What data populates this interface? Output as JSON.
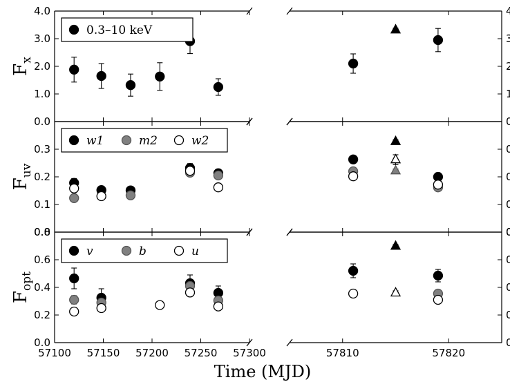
{
  "chart_data": {
    "type": "scatter",
    "xlabel": "Time (MJD)",
    "broken_x_axis": true,
    "x_segments": [
      {
        "xlim": [
          57100,
          57300
        ],
        "ticks": [
          "57100",
          "57150",
          "57200",
          "57250",
          "57300"
        ]
      },
      {
        "xlim": [
          57805,
          57825
        ],
        "ticks": [
          "57810",
          "57820"
        ]
      }
    ],
    "panels": [
      {
        "ylabel_main": "F",
        "ylabel_sub": "x",
        "ylim": [
          0,
          4
        ],
        "yticks": [
          "0.0",
          "1.0",
          "2.0",
          "3.0",
          "4.0"
        ],
        "legend": "top-left",
        "series": [
          {
            "name": "0.3–10 keV",
            "style": "black",
            "points": [
              {
                "x": 57120,
                "y": 1.88,
                "err": 0.45
              },
              {
                "x": 57148,
                "y": 1.65,
                "err": 0.45
              },
              {
                "x": 57178,
                "y": 1.32,
                "err": 0.4
              },
              {
                "x": 57208,
                "y": 1.63,
                "err": 0.5
              },
              {
                "x": 57239,
                "y": 2.91,
                "err": 0.45
              },
              {
                "x": 57268,
                "y": 1.25,
                "err": 0.3
              },
              {
                "x": 57811,
                "y": 2.1,
                "err": 0.35
              },
              {
                "x": 57819,
                "y": 2.95,
                "err": 0.42
              }
            ]
          },
          {
            "name": "",
            "style": "black-triangle",
            "points": [
              {
                "x": 57815,
                "y": 3.32,
                "err": 0.06
              }
            ]
          }
        ]
      },
      {
        "ylabel_main": "F",
        "ylabel_sub": "uv",
        "ylim": [
          0,
          0.4
        ],
        "yticks": [
          "0.0",
          "0.1",
          "0.2",
          "0.3"
        ],
        "legend": "top-left",
        "series": [
          {
            "name": "w1",
            "style": "black",
            "points": [
              {
                "x": 57120,
                "y": 0.178,
                "err": 0.016
              },
              {
                "x": 57148,
                "y": 0.152,
                "err": 0.008
              },
              {
                "x": 57178,
                "y": 0.151,
                "err": 0.008
              },
              {
                "x": 57239,
                "y": 0.232,
                "err": 0.016
              },
              {
                "x": 57268,
                "y": 0.213,
                "err": 0.012
              },
              {
                "x": 57811,
                "y": 0.263,
                "err": 0.012
              },
              {
                "x": 57819,
                "y": 0.2,
                "err": 0.012
              }
            ]
          },
          {
            "name": "m2",
            "style": "gray",
            "points": [
              {
                "x": 57120,
                "y": 0.123
              },
              {
                "x": 57178,
                "y": 0.133
              },
              {
                "x": 57239,
                "y": 0.215
              },
              {
                "x": 57268,
                "y": 0.205
              },
              {
                "x": 57811,
                "y": 0.22
              },
              {
                "x": 57819,
                "y": 0.162
              }
            ]
          },
          {
            "name": "w2",
            "style": "open",
            "points": [
              {
                "x": 57120,
                "y": 0.158
              },
              {
                "x": 57148,
                "y": 0.13
              },
              {
                "x": 57239,
                "y": 0.222
              },
              {
                "x": 57268,
                "y": 0.162
              },
              {
                "x": 57811,
                "y": 0.202
              },
              {
                "x": 57819,
                "y": 0.172
              }
            ]
          },
          {
            "name": "",
            "style": "black-triangle",
            "points": [
              {
                "x": 57815,
                "y": 0.328,
                "err": 0.006
              }
            ]
          },
          {
            "name": "",
            "style": "gray-triangle",
            "points": [
              {
                "x": 57815,
                "y": 0.222,
                "err": 0.006
              }
            ]
          },
          {
            "name": "",
            "style": "open-triangle",
            "points": [
              {
                "x": 57815,
                "y": 0.262,
                "err": 0.018
              }
            ]
          }
        ]
      },
      {
        "ylabel_main": "F",
        "ylabel_sub": "opt",
        "ylim": [
          0,
          0.8
        ],
        "yticks": [
          "0.0",
          "0.2",
          "0.4",
          "0.6",
          "0.8"
        ],
        "legend": "top-left",
        "series": [
          {
            "name": "v",
            "style": "black",
            "points": [
              {
                "x": 57120,
                "y": 0.465,
                "err": 0.075
              },
              {
                "x": 57148,
                "y": 0.325,
                "err": 0.065
              },
              {
                "x": 57239,
                "y": 0.43,
                "err": 0.06
              },
              {
                "x": 57268,
                "y": 0.36,
                "err": 0.05
              },
              {
                "x": 57811,
                "y": 0.52,
                "err": 0.05
              },
              {
                "x": 57819,
                "y": 0.485,
                "err": 0.045
              }
            ]
          },
          {
            "name": "b",
            "style": "gray",
            "points": [
              {
                "x": 57120,
                "y": 0.31,
                "err": 0.03
              },
              {
                "x": 57148,
                "y": 0.29
              },
              {
                "x": 57239,
                "y": 0.41
              },
              {
                "x": 57268,
                "y": 0.305
              },
              {
                "x": 57819,
                "y": 0.355
              }
            ]
          },
          {
            "name": "u",
            "style": "open",
            "points": [
              {
                "x": 57120,
                "y": 0.225
              },
              {
                "x": 57148,
                "y": 0.25
              },
              {
                "x": 57208,
                "y": 0.272
              },
              {
                "x": 57239,
                "y": 0.363,
                "err": 0.02
              },
              {
                "x": 57268,
                "y": 0.262
              },
              {
                "x": 57811,
                "y": 0.355
              },
              {
                "x": 57819,
                "y": 0.31
              }
            ]
          },
          {
            "name": "",
            "style": "black-triangle",
            "points": [
              {
                "x": 57815,
                "y": 0.698,
                "err": 0.012
              }
            ]
          },
          {
            "name": "",
            "style": "open-triangle",
            "points": [
              {
                "x": 57815,
                "y": 0.36,
                "err": 0.015
              }
            ]
          }
        ]
      }
    ],
    "colors": {
      "black": "#000000",
      "gray": "#808080",
      "open": "#ffffff"
    }
  }
}
